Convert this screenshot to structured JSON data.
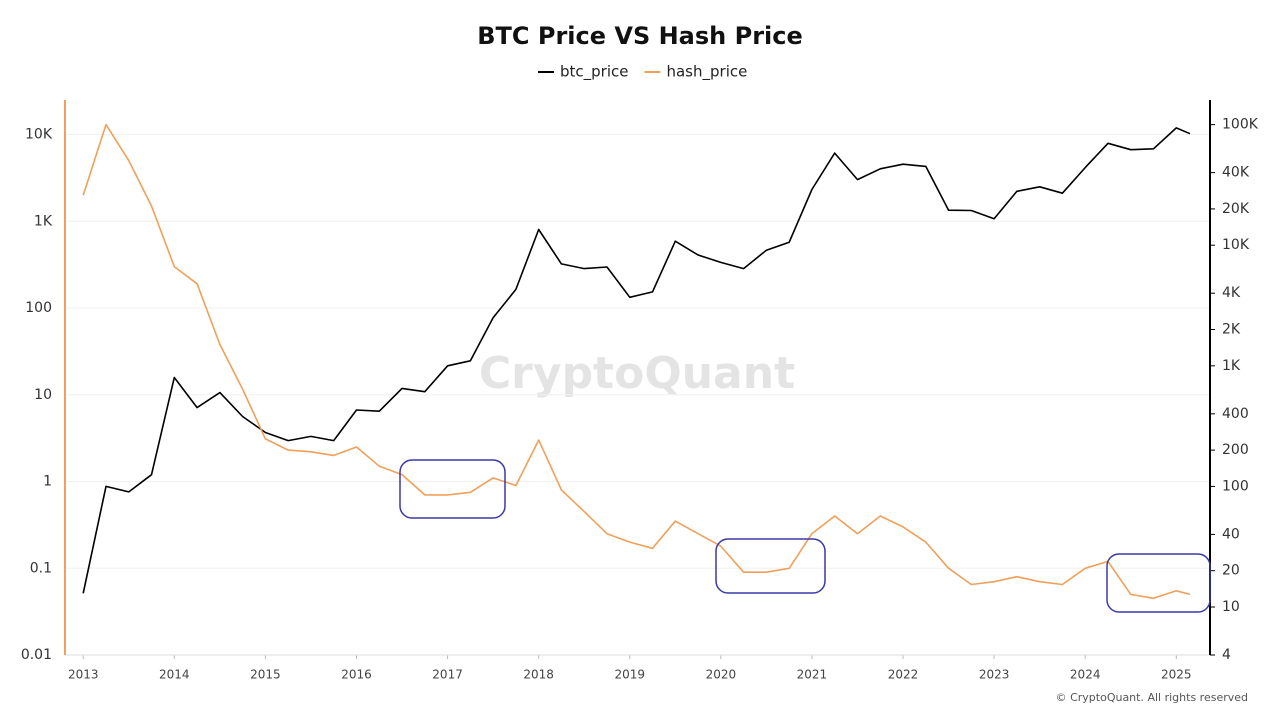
{
  "chart_data": {
    "type": "line",
    "title": "BTC Price VS Hash Price",
    "watermark": "CryptoQuant",
    "footer": "© CryptoQuant. All rights reserved",
    "x": [
      2013.0,
      2013.25,
      2013.5,
      2013.75,
      2014.0,
      2014.25,
      2014.5,
      2014.75,
      2015.0,
      2015.25,
      2015.5,
      2015.75,
      2016.0,
      2016.25,
      2016.5,
      2016.75,
      2017.0,
      2017.25,
      2017.5,
      2017.75,
      2018.0,
      2018.25,
      2018.5,
      2018.75,
      2019.0,
      2019.25,
      2019.5,
      2019.75,
      2020.0,
      2020.25,
      2020.5,
      2020.75,
      2021.0,
      2021.25,
      2021.5,
      2021.75,
      2022.0,
      2022.25,
      2022.5,
      2022.75,
      2023.0,
      2023.25,
      2023.5,
      2023.75,
      2024.0,
      2024.25,
      2024.5,
      2024.75,
      2025.0,
      2025.15
    ],
    "xlim": [
      2012.8,
      2025.37
    ],
    "xticks": [
      2013,
      2014,
      2015,
      2016,
      2017,
      2018,
      2019,
      2020,
      2021,
      2022,
      2023,
      2024,
      2025
    ],
    "series": [
      {
        "name": "btc_price",
        "color": "#000000",
        "axis": "y2",
        "values": [
          13,
          100,
          90,
          125,
          800,
          450,
          600,
          380,
          280,
          240,
          260,
          240,
          430,
          420,
          650,
          610,
          1000,
          1100,
          2500,
          4300,
          13500,
          7000,
          6400,
          6600,
          3700,
          4100,
          10800,
          8300,
          7200,
          6400,
          9100,
          10600,
          29000,
          58000,
          35000,
          43000,
          47000,
          45000,
          19500,
          19400,
          16600,
          28000,
          30500,
          27000,
          44000,
          70000,
          62000,
          63000,
          94000,
          84000
        ]
      },
      {
        "name": "hash_price",
        "color": "#f0a05a",
        "values": [
          2000,
          13000,
          5000,
          1500,
          300,
          190,
          38,
          11.6,
          3.1,
          2.3,
          2.2,
          2.0,
          2.5,
          1.5,
          1.2,
          0.7,
          0.7,
          0.75,
          1.1,
          0.9,
          3.0,
          0.8,
          0.45,
          0.25,
          0.2,
          0.17,
          0.35,
          0.25,
          0.18,
          0.09,
          0.09,
          0.1,
          0.25,
          0.4,
          0.25,
          0.4,
          0.3,
          0.2,
          0.1,
          0.065,
          0.07,
          0.08,
          0.07,
          0.065,
          0.1,
          0.12,
          0.05,
          0.045,
          0.055,
          0.05
        ]
      }
    ],
    "ylim": [
      0.01,
      25000
    ],
    "ylog": true,
    "yticks": [
      0.01,
      0.1,
      1,
      10,
      100,
      {
        "value": 1000,
        "label": "1K"
      },
      {
        "value": 10000,
        "label": "10K"
      }
    ],
    "y2lim": [
      4,
      160000
    ],
    "y2log": true,
    "y2ticks": [
      4,
      10,
      20,
      40,
      100,
      200,
      400,
      {
        "value": 1000,
        "label": "1K"
      },
      {
        "value": 2000,
        "label": "2K"
      },
      {
        "value": 4000,
        "label": "4K"
      },
      {
        "value": 10000,
        "label": "10K"
      },
      {
        "value": 20000,
        "label": "20K"
      },
      {
        "value": 40000,
        "label": "40K"
      },
      {
        "value": 100000,
        "label": "100K"
      }
    ],
    "grid": true,
    "legend": "top"
  }
}
